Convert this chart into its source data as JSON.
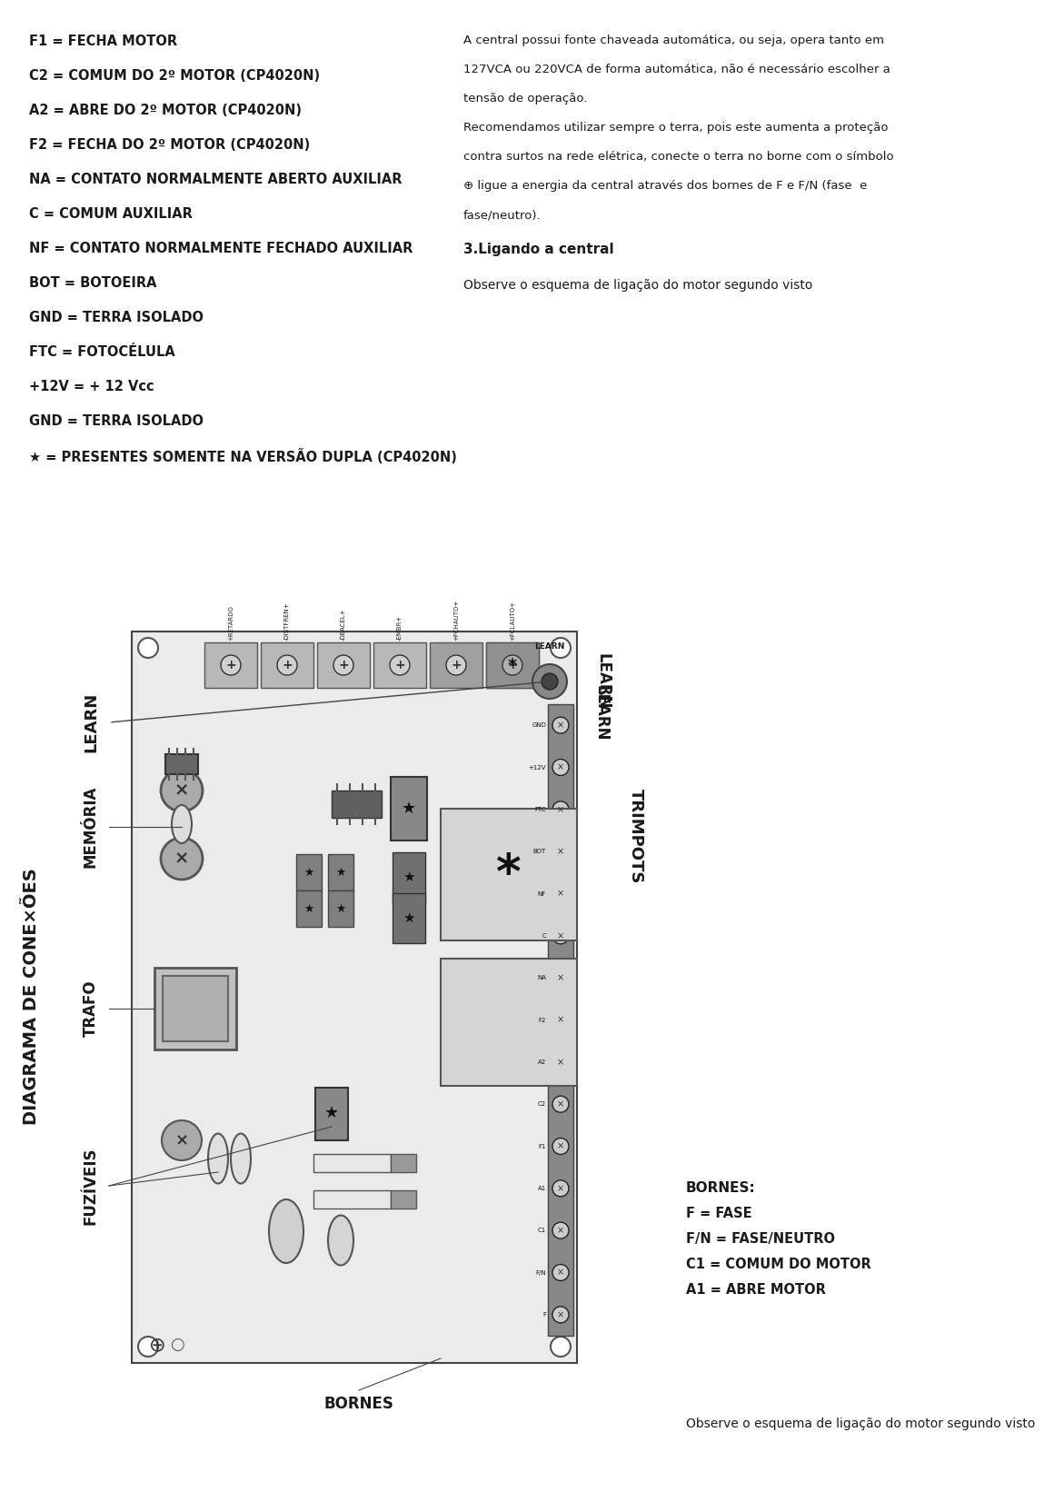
{
  "bg": "#ffffff",
  "fg": "#1a1a1a",
  "left_legend": [
    "F1 = FECHA MOTOR",
    "C2 = COMUM DO 2º MOTOR (CP4020N)",
    "A2 = ABRE DO 2º MOTOR (CP4020N)",
    "F2 = FECHA DO 2º MOTOR (CP4020N)",
    "NA = CONTATO NORMALMENTE ABERTO AUXILIAR",
    "C = COMUM AUXILIAR",
    "NF = CONTATO NORMALMENTE FECHADO AUXILIAR",
    "BOT = BOTOEIRA",
    "GND = TERRA ISOLADO",
    "FTC = FOTOCÉLULA",
    "+12V = + 12 Vcc",
    "GND = TERRA ISOLADO",
    "★ = PRESENTES SOMENTE NA VERSÃO DUPLA (CP4020N)"
  ],
  "right_para_lines": [
    "A central possui fonte chaveada automática, ou seja, opera tanto em",
    "127VCA ou 220VCA de forma automática, não é necessário escolher a",
    "tensão de operação.",
    "Recomendamos utilizar sempre o terra, pois este aumenta a proteção",
    "contra surtos na rede elétrica, conecte o terra no borne com o símbolo",
    "⊕ ligue a energia da central através dos bornes de F e F/N (fase  e",
    "fase/neutro)."
  ],
  "sec3_title": "3.Ligando a central",
  "observe_line": "Observe o esquema de ligação do motor segundo visto",
  "board_title": "DIAGRAMA DE CONE×ÕES",
  "label_learn": "LEARN",
  "label_memoria": "MEMÓRIA",
  "label_trafo": "TRAFO",
  "label_fuziveis": "FUZÍVEIS",
  "label_bornes": "BORNES",
  "label_trimpots": "TRIMPOTS",
  "bornes_title": "BORNES:",
  "bornes_lines": [
    "F = FASE",
    "F/N = FASE/NEUTRO",
    "C1 = COMUM DO MOTOR",
    "A1 = ABRE MOTOR"
  ],
  "strip_labels_top_to_bottom": [
    "GND",
    "+12V",
    "FTC",
    "BOT",
    "NF",
    "C",
    "NA",
    "F2",
    "A2",
    "C2",
    "F1",
    "A1",
    "C1",
    "F/N",
    "F"
  ],
  "top_term_labels": [
    "+RETARDO",
    "-DISTFREN+",
    "-DEACEL+",
    "-EMBR+",
    "+FCHAUTO+",
    "+FCLAUTO+"
  ],
  "board_color": "#ebebeb",
  "strip_color": "#c8c8c8",
  "comp_dark": "#606060",
  "comp_mid": "#909090",
  "comp_light": "#c0c0c0",
  "relay_color": "#d5d5d5",
  "term_color": "#b0b0b0"
}
